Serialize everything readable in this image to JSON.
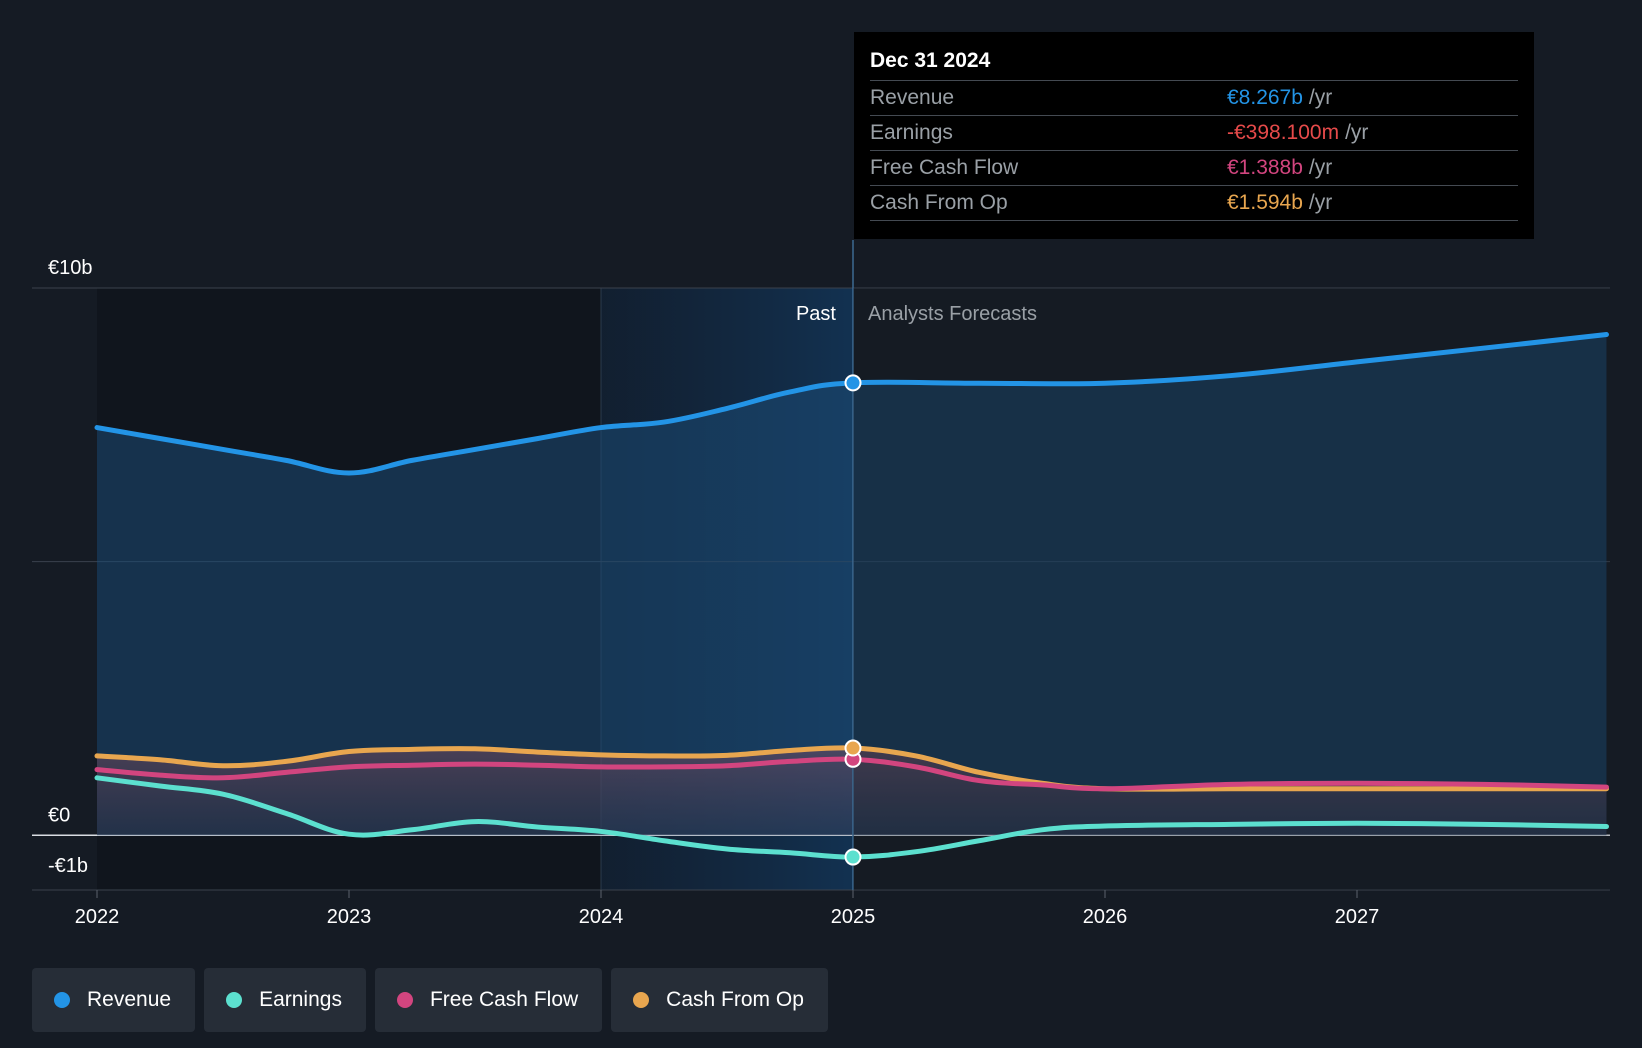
{
  "chart_data": {
    "type": "area",
    "x_ticks": [
      "2022",
      "2023",
      "2024",
      "2025",
      "2026",
      "2027"
    ],
    "y_ticks": [
      {
        "label": "€10b",
        "value": 10
      },
      {
        "label": "€0",
        "value": 0
      },
      {
        "label": "-€1b",
        "value": -1
      }
    ],
    "ylim": [
      -1,
      10
    ],
    "xlim": [
      2021.75,
      2027.99
    ],
    "past_label": "Past",
    "forecast_label": "Analysts Forecasts",
    "divider_x": 2025.0,
    "highlight_start": 2024.0,
    "series": [
      {
        "name": "Revenue",
        "color": "#2394e6",
        "fill": true,
        "points": [
          [
            2022.0,
            7.45
          ],
          [
            2022.25,
            7.25
          ],
          [
            2022.5,
            7.05
          ],
          [
            2022.75,
            6.85
          ],
          [
            2023.0,
            6.62
          ],
          [
            2023.25,
            6.85
          ],
          [
            2023.5,
            7.05
          ],
          [
            2023.75,
            7.25
          ],
          [
            2024.0,
            7.45
          ],
          [
            2024.25,
            7.55
          ],
          [
            2024.5,
            7.8
          ],
          [
            2024.75,
            8.1
          ],
          [
            2025.0,
            8.267
          ],
          [
            2025.5,
            8.26
          ],
          [
            2026.0,
            8.26
          ],
          [
            2026.5,
            8.4
          ],
          [
            2027.0,
            8.65
          ],
          [
            2027.5,
            8.9
          ],
          [
            2027.99,
            9.15
          ]
        ]
      },
      {
        "name": "Earnings",
        "color": "#5ce0cf",
        "fill": false,
        "points": [
          [
            2022.0,
            1.05
          ],
          [
            2022.25,
            0.9
          ],
          [
            2022.5,
            0.75
          ],
          [
            2022.75,
            0.4
          ],
          [
            2023.0,
            0.02
          ],
          [
            2023.25,
            0.1
          ],
          [
            2023.5,
            0.25
          ],
          [
            2023.75,
            0.15
          ],
          [
            2024.0,
            0.07
          ],
          [
            2024.25,
            -0.1
          ],
          [
            2024.5,
            -0.25
          ],
          [
            2024.75,
            -0.32
          ],
          [
            2025.0,
            -0.398
          ],
          [
            2025.25,
            -0.3
          ],
          [
            2025.5,
            -0.1
          ],
          [
            2025.75,
            0.1
          ],
          [
            2026.0,
            0.17
          ],
          [
            2026.5,
            0.2
          ],
          [
            2027.0,
            0.22
          ],
          [
            2027.5,
            0.2
          ],
          [
            2027.99,
            0.16
          ]
        ]
      },
      {
        "name": "Free Cash Flow",
        "color": "#d2457f",
        "fill": false,
        "points": [
          [
            2022.0,
            1.2
          ],
          [
            2022.25,
            1.1
          ],
          [
            2022.5,
            1.05
          ],
          [
            2022.75,
            1.15
          ],
          [
            2023.0,
            1.25
          ],
          [
            2023.25,
            1.28
          ],
          [
            2023.5,
            1.3
          ],
          [
            2023.75,
            1.28
          ],
          [
            2024.0,
            1.25
          ],
          [
            2024.25,
            1.25
          ],
          [
            2024.5,
            1.27
          ],
          [
            2024.75,
            1.35
          ],
          [
            2025.0,
            1.388
          ],
          [
            2025.25,
            1.25
          ],
          [
            2025.5,
            1.0
          ],
          [
            2025.75,
            0.92
          ],
          [
            2026.0,
            0.85
          ],
          [
            2026.5,
            0.93
          ],
          [
            2027.0,
            0.95
          ],
          [
            2027.5,
            0.93
          ],
          [
            2027.99,
            0.88
          ]
        ]
      },
      {
        "name": "Cash From Op",
        "color": "#e8a64f",
        "fill": false,
        "points": [
          [
            2022.0,
            1.45
          ],
          [
            2022.25,
            1.38
          ],
          [
            2022.5,
            1.27
          ],
          [
            2022.75,
            1.35
          ],
          [
            2023.0,
            1.53
          ],
          [
            2023.25,
            1.57
          ],
          [
            2023.5,
            1.58
          ],
          [
            2023.75,
            1.52
          ],
          [
            2024.0,
            1.47
          ],
          [
            2024.25,
            1.45
          ],
          [
            2024.5,
            1.46
          ],
          [
            2024.75,
            1.55
          ],
          [
            2025.0,
            1.594
          ],
          [
            2025.25,
            1.45
          ],
          [
            2025.5,
            1.15
          ],
          [
            2025.75,
            0.95
          ],
          [
            2026.0,
            0.85
          ],
          [
            2026.5,
            0.85
          ],
          [
            2027.0,
            0.85
          ],
          [
            2027.5,
            0.85
          ],
          [
            2027.99,
            0.85
          ]
        ]
      }
    ]
  },
  "tooltip": {
    "date": "Dec 31 2024",
    "rows": [
      {
        "name": "Revenue",
        "value": "€8.267b",
        "unit": "/yr",
        "color": "#2394e6"
      },
      {
        "name": "Earnings",
        "value": "-€398.100m",
        "unit": "/yr",
        "color": "#e64a4a"
      },
      {
        "name": "Free Cash Flow",
        "value": "€1.388b",
        "unit": "/yr",
        "color": "#d2457f"
      },
      {
        "name": "Cash From Op",
        "value": "€1.594b",
        "unit": "/yr",
        "color": "#e8a64f"
      }
    ]
  },
  "legend": [
    {
      "label": "Revenue",
      "color": "#2394e6"
    },
    {
      "label": "Earnings",
      "color": "#5ce0cf"
    },
    {
      "label": "Free Cash Flow",
      "color": "#d2457f"
    },
    {
      "label": "Cash From Op",
      "color": "#e8a64f"
    }
  ]
}
